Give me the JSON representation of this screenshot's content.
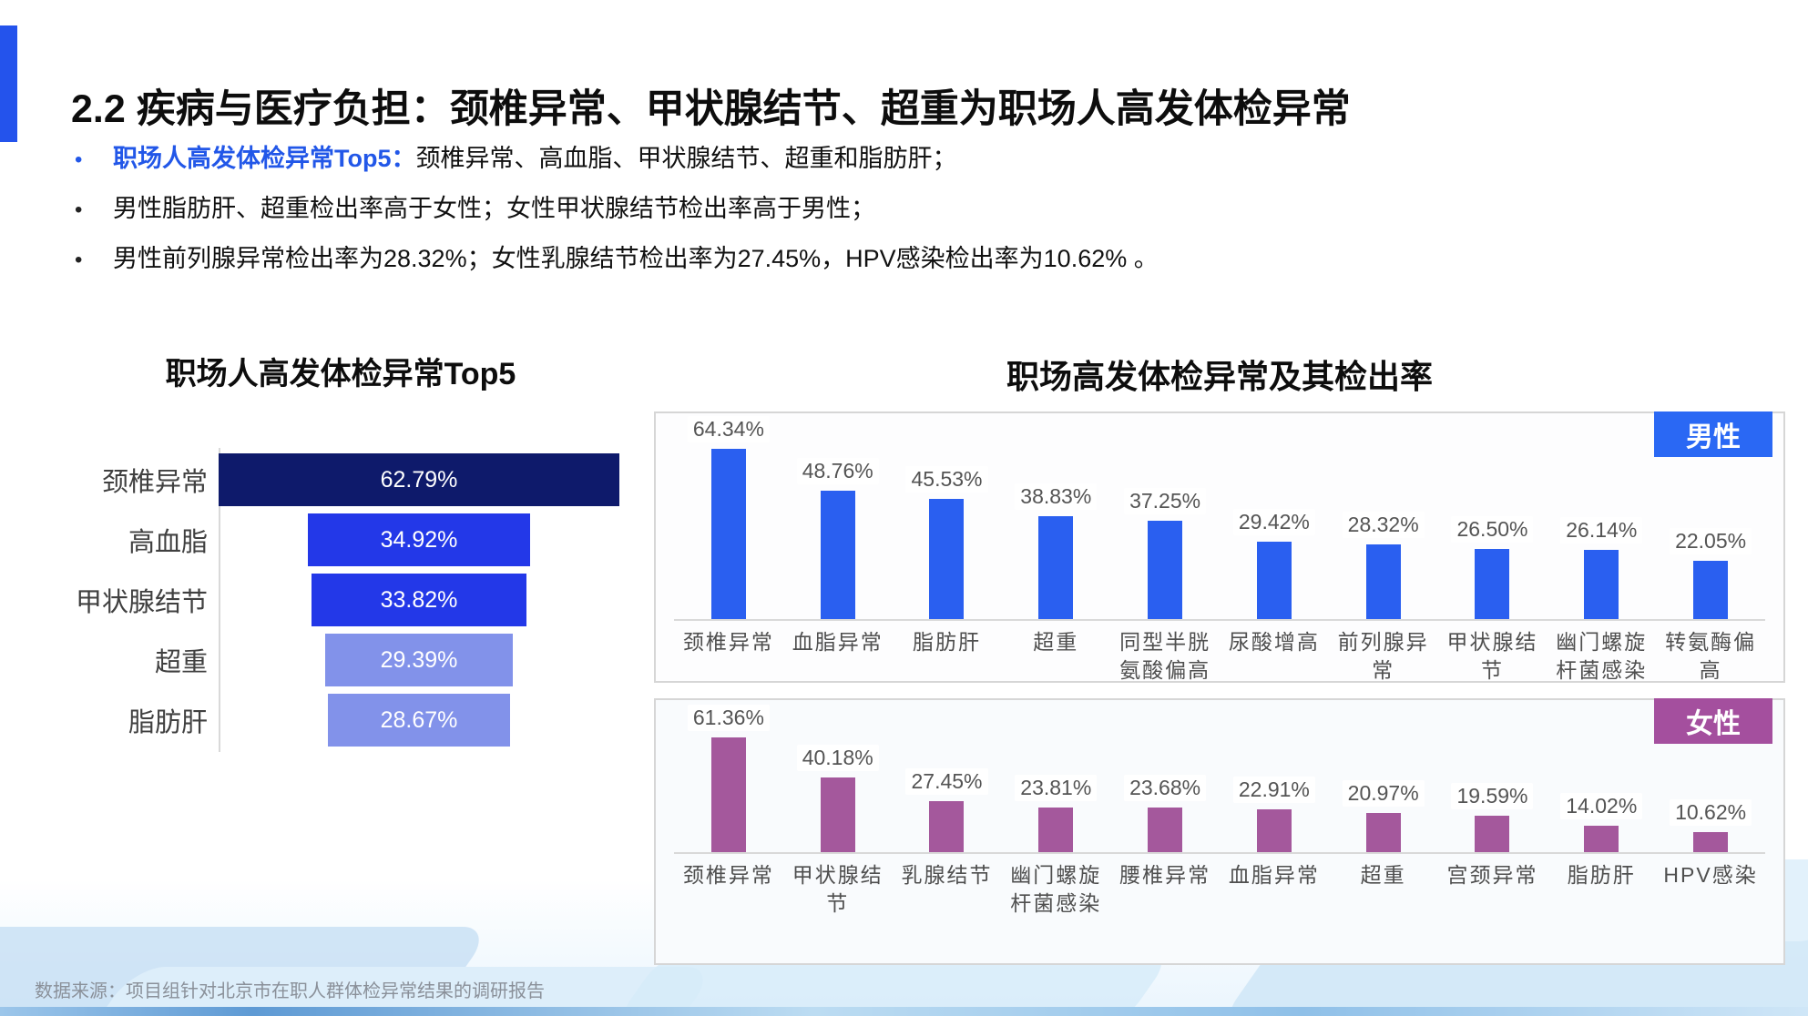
{
  "page": {
    "title": "2.2 疾病与医疗负担：颈椎异常、甲状腺结节、超重为职场人高发体检异常",
    "bullets": [
      {
        "marker": "•",
        "lead": "职场人高发体检异常Top5：",
        "text": "颈椎异常、高血脂、甲状腺结节、超重和脂肪肝；"
      },
      {
        "marker": "•",
        "lead": "",
        "text": "男性脂肪肝、超重检出率高于女性；女性甲状腺结节检出率高于男性；"
      },
      {
        "marker": "•",
        "lead": "",
        "text": "男性前列腺异常检出率为28.32%；女性乳腺结节检出率为27.45%，HPV感染检出率为10.62% 。"
      }
    ],
    "source": "数据来源：项目组针对北京市在职人群体检异常结果的调研报告",
    "accent_color": "#2453ec"
  },
  "chart_data": [
    {
      "type": "bar",
      "subtype": "horizontal-centered-funnel",
      "title": "职场人高发体检异常Top5",
      "categories": [
        "颈椎异常",
        "高血脂",
        "甲状腺结节",
        "超重",
        "脂肪肝"
      ],
      "values": [
        62.79,
        34.92,
        33.82,
        29.39,
        28.67
      ],
      "labels": [
        "62.79%",
        "34.92%",
        "33.82%",
        "29.39%",
        "28.67%"
      ],
      "bar_colors": [
        "#0e1a6b",
        "#2338e8",
        "#2338e8",
        "#8292ea",
        "#8292ea"
      ],
      "legend_position": "none",
      "grid": false
    },
    {
      "type": "bar",
      "title": "职场高发体检异常及其检出率",
      "group": "男性",
      "accent": "#2a68f4",
      "bar_color": "#2a5ff0",
      "categories": [
        "颈椎异常",
        "血脂异常",
        "脂肪肝",
        "超重",
        "同型半胱氨酸偏高",
        "尿酸增高",
        "前列腺异常",
        "甲状腺结节",
        "幽门螺旋杆菌感染",
        "转氨酶偏高"
      ],
      "values": [
        64.34,
        48.76,
        45.53,
        38.83,
        37.25,
        29.42,
        28.32,
        26.5,
        26.14,
        22.05
      ],
      "labels": [
        "64.34%",
        "48.76%",
        "45.53%",
        "38.83%",
        "37.25%",
        "29.42%",
        "28.32%",
        "26.50%",
        "26.14%",
        "22.05%"
      ],
      "ylim": [
        0,
        75
      ],
      "grid": false,
      "legend_position": "top-right"
    },
    {
      "type": "bar",
      "title": "职场高发体检异常及其检出率",
      "group": "女性",
      "accent": "#a44f9e",
      "bar_color": "#a4589c",
      "categories": [
        "颈椎异常",
        "甲状腺结节",
        "乳腺结节",
        "幽门螺旋杆菌感染",
        "腰椎异常",
        "血脂异常",
        "超重",
        "宫颈异常",
        "脂肪肝",
        "HPV感染"
      ],
      "values": [
        61.36,
        40.18,
        27.45,
        23.81,
        23.68,
        22.91,
        20.97,
        19.59,
        14.02,
        10.62
      ],
      "labels": [
        "61.36%",
        "40.18%",
        "27.45%",
        "23.81%",
        "23.68%",
        "22.91%",
        "20.97%",
        "19.59%",
        "14.02%",
        "10.62%"
      ],
      "ylim": [
        0,
        75
      ],
      "grid": false,
      "legend_position": "top-right"
    }
  ]
}
